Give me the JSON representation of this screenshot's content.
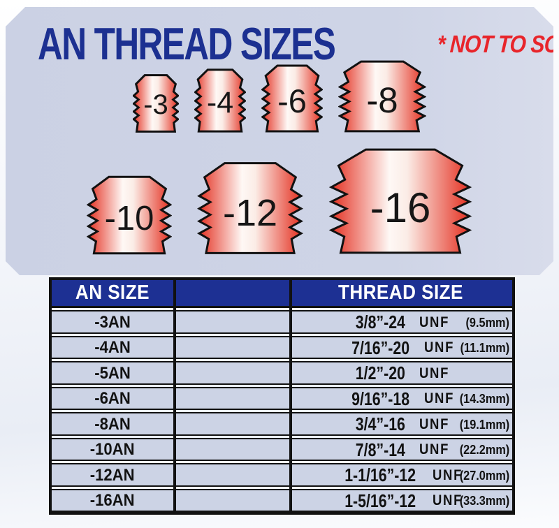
{
  "header": {
    "title": "AN THREAD SIZES",
    "note": "* NOT TO SCALE *"
  },
  "fittings": [
    {
      "label": "-3"
    },
    {
      "label": "-4"
    },
    {
      "label": "-6"
    },
    {
      "label": "-8"
    },
    {
      "label": "-10"
    },
    {
      "label": "-12"
    },
    {
      "label": "-16"
    }
  ],
  "table": {
    "col_an": "AN SIZE",
    "col_mid": "",
    "col_thread": "THREAD SIZE",
    "rows": [
      {
        "an": "-3AN",
        "size": "3/8”-24",
        "std": "UNF",
        "mm": "(9.5mm)"
      },
      {
        "an": "-4AN",
        "size": "7/16”-20",
        "std": "UNF",
        "mm": "(11.1mm)"
      },
      {
        "an": "-5AN",
        "size": "1/2”-20",
        "std": "UNF",
        "mm": ""
      },
      {
        "an": "-6AN",
        "size": "9/16”-18",
        "std": "UNF",
        "mm": "(14.3mm)"
      },
      {
        "an": "-8AN",
        "size": "3/4”-16",
        "std": "UNF",
        "mm": "(19.1mm)"
      },
      {
        "an": "-10AN",
        "size": "7/8”-14",
        "std": "UNF",
        "mm": "(22.2mm)"
      },
      {
        "an": "-12AN",
        "size": "1-1/16”-12",
        "std": "UNF",
        "mm": "(27.0mm)"
      },
      {
        "an": "-16AN",
        "size": "1-5/16”-12",
        "std": "UNF",
        "mm": "(33.3mm)"
      }
    ]
  },
  "colors": {
    "panel_blue": "#ced4e6",
    "header_blue": "#1d3093",
    "title_blue": "#1c3091",
    "accent_red": "#e8252b",
    "cell_blue": "#ccd3e5",
    "fitting_red": "#e43122",
    "outline_black": "#111111"
  }
}
